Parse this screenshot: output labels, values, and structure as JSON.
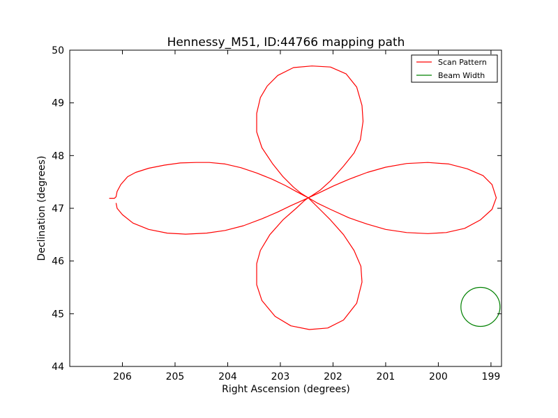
{
  "chart_data": {
    "type": "line",
    "title": "Hennessy_M51, ID:44766 mapping path",
    "xlabel": "Right Ascension (degrees)",
    "ylabel": "Declination (degrees)",
    "xlim": [
      207.0,
      198.8
    ],
    "ylim": [
      44,
      50
    ],
    "xticks": [
      206,
      205,
      204,
      203,
      202,
      201,
      200,
      199
    ],
    "yticks": [
      44,
      45,
      46,
      47,
      48,
      49,
      50
    ],
    "grid": false,
    "legend_position": "top-right",
    "series": [
      {
        "name": "Scan Pattern",
        "color": "#ff0000",
        "points": [
          [
            206.25,
            47.19
          ],
          [
            206.15,
            47.19
          ],
          [
            206.12,
            47.22
          ],
          [
            206.1,
            47.32
          ],
          [
            206.03,
            47.45
          ],
          [
            205.9,
            47.6
          ],
          [
            205.75,
            47.68
          ],
          [
            205.5,
            47.76
          ],
          [
            205.2,
            47.82
          ],
          [
            204.9,
            47.86
          ],
          [
            204.6,
            47.87
          ],
          [
            204.35,
            47.87
          ],
          [
            204.05,
            47.84
          ],
          [
            203.75,
            47.77
          ],
          [
            203.45,
            47.67
          ],
          [
            203.15,
            47.55
          ],
          [
            202.9,
            47.43
          ],
          [
            202.7,
            47.32
          ],
          [
            202.55,
            47.24
          ],
          [
            202.47,
            47.2
          ],
          [
            202.4,
            47.24
          ],
          [
            202.25,
            47.34
          ],
          [
            202.05,
            47.52
          ],
          [
            201.8,
            47.8
          ],
          [
            201.6,
            48.05
          ],
          [
            201.48,
            48.3
          ],
          [
            201.43,
            48.65
          ],
          [
            201.45,
            48.95
          ],
          [
            201.55,
            49.3
          ],
          [
            201.75,
            49.55
          ],
          [
            202.05,
            49.68
          ],
          [
            202.4,
            49.7
          ],
          [
            202.75,
            49.67
          ],
          [
            203.05,
            49.52
          ],
          [
            203.25,
            49.32
          ],
          [
            203.38,
            49.1
          ],
          [
            203.45,
            48.8
          ],
          [
            203.45,
            48.45
          ],
          [
            203.35,
            48.15
          ],
          [
            203.15,
            47.85
          ],
          [
            202.95,
            47.6
          ],
          [
            202.75,
            47.4
          ],
          [
            202.6,
            47.28
          ],
          [
            202.47,
            47.2
          ],
          [
            202.3,
            47.1
          ],
          [
            202.05,
            46.98
          ],
          [
            201.7,
            46.82
          ],
          [
            201.35,
            46.7
          ],
          [
            201.0,
            46.6
          ],
          [
            200.6,
            46.54
          ],
          [
            200.2,
            46.52
          ],
          [
            199.85,
            46.54
          ],
          [
            199.5,
            46.62
          ],
          [
            199.2,
            46.78
          ],
          [
            198.98,
            46.98
          ],
          [
            198.9,
            47.2
          ],
          [
            198.98,
            47.45
          ],
          [
            199.15,
            47.62
          ],
          [
            199.45,
            47.75
          ],
          [
            199.8,
            47.84
          ],
          [
            200.2,
            47.87
          ],
          [
            200.6,
            47.85
          ],
          [
            201.0,
            47.78
          ],
          [
            201.35,
            47.68
          ],
          [
            201.7,
            47.55
          ],
          [
            202.0,
            47.42
          ],
          [
            202.25,
            47.3
          ],
          [
            202.4,
            47.23
          ],
          [
            202.47,
            47.2
          ],
          [
            202.55,
            47.14
          ],
          [
            202.7,
            47.0
          ],
          [
            202.95,
            46.78
          ],
          [
            203.2,
            46.5
          ],
          [
            203.38,
            46.2
          ],
          [
            203.45,
            45.95
          ],
          [
            203.45,
            45.55
          ],
          [
            203.35,
            45.25
          ],
          [
            203.1,
            44.95
          ],
          [
            202.8,
            44.77
          ],
          [
            202.45,
            44.7
          ],
          [
            202.1,
            44.73
          ],
          [
            201.8,
            44.88
          ],
          [
            201.55,
            45.2
          ],
          [
            201.45,
            45.6
          ],
          [
            201.47,
            45.9
          ],
          [
            201.6,
            46.2
          ],
          [
            201.8,
            46.5
          ],
          [
            202.05,
            46.78
          ],
          [
            202.25,
            46.98
          ],
          [
            202.4,
            47.13
          ],
          [
            202.47,
            47.2
          ],
          [
            202.6,
            47.14
          ],
          [
            202.8,
            47.05
          ],
          [
            203.05,
            46.93
          ],
          [
            203.35,
            46.8
          ],
          [
            203.7,
            46.67
          ],
          [
            204.05,
            46.58
          ],
          [
            204.4,
            46.53
          ],
          [
            204.8,
            46.51
          ],
          [
            205.15,
            46.53
          ],
          [
            205.5,
            46.6
          ],
          [
            205.8,
            46.72
          ],
          [
            206.0,
            46.88
          ],
          [
            206.1,
            47.0
          ],
          [
            206.12,
            47.1
          ]
        ]
      },
      {
        "name": "Beam Width",
        "color": "#008000",
        "shape": "circle",
        "center": [
          199.2,
          45.13
        ],
        "radius_deg": 0.37
      }
    ]
  }
}
